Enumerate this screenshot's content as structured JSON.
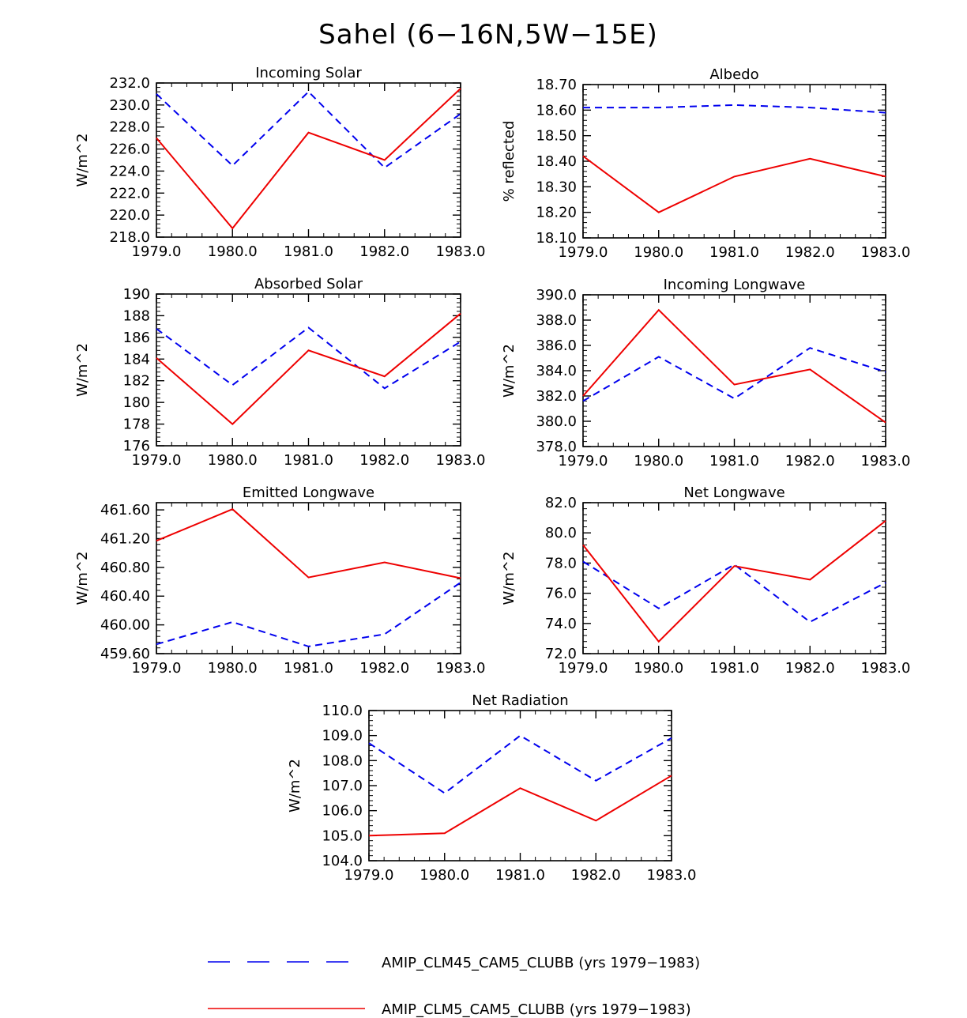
{
  "figure": {
    "title": "Sahel (6−16N,5W−15E)",
    "colors": {
      "series_a": "#0000ee",
      "series_b": "#ee0000",
      "axes": "#000000"
    }
  },
  "legend": [
    {
      "label": "AMIP_CLM45_CAM5_CLUBB (yrs 1979−1983)",
      "color": "#0000ee",
      "style": "dashed"
    },
    {
      "label": "AMIP_CLM5_CAM5_CLUBB (yrs 1979−1983)",
      "color": "#ee0000",
      "style": "solid"
    }
  ],
  "chart_data": [
    {
      "type": "line",
      "title": "Incoming Solar",
      "ylabel": "W/m^2",
      "x": [
        1979,
        1980,
        1981,
        1982,
        1983
      ],
      "xticks": [
        "1979.0",
        "1980.0",
        "1981.0",
        "1982.0",
        "1983.0"
      ],
      "ylim": [
        218,
        232
      ],
      "yticks": [
        "218.0",
        "220.0",
        "222.0",
        "224.0",
        "226.0",
        "228.0",
        "230.0",
        "232.0"
      ],
      "series": [
        {
          "name": "AMIP_CLM45_CAM5_CLUBB",
          "values": [
            231.0,
            224.5,
            231.2,
            224.3,
            229.2
          ]
        },
        {
          "name": "AMIP_CLM5_CAM5_CLUBB",
          "values": [
            227.0,
            218.8,
            227.5,
            225.0,
            231.5
          ]
        }
      ]
    },
    {
      "type": "line",
      "title": "Albedo",
      "ylabel": "% reflected",
      "x": [
        1979,
        1980,
        1981,
        1982,
        1983
      ],
      "xticks": [
        "1979.0",
        "1980.0",
        "1981.0",
        "1982.0",
        "1983.0"
      ],
      "ylim": [
        18.1,
        18.7
      ],
      "yticks": [
        "18.10",
        "18.20",
        "18.30",
        "18.40",
        "18.50",
        "18.60",
        "18.70"
      ],
      "series": [
        {
          "name": "AMIP_CLM45_CAM5_CLUBB",
          "values": [
            18.61,
            18.61,
            18.62,
            18.61,
            18.59
          ]
        },
        {
          "name": "AMIP_CLM5_CAM5_CLUBB",
          "values": [
            18.42,
            18.2,
            18.34,
            18.41,
            18.34
          ]
        }
      ]
    },
    {
      "type": "line",
      "title": "Absorbed Solar",
      "ylabel": "W/m^2",
      "x": [
        1979,
        1980,
        1981,
        1982,
        1983
      ],
      "xticks": [
        "1979.0",
        "1980.0",
        "1981.0",
        "1982.0",
        "1983.0"
      ],
      "ylim": [
        176,
        190
      ],
      "yticks": [
        "176",
        "178",
        "180",
        "182",
        "184",
        "186",
        "188",
        "190"
      ],
      "series": [
        {
          "name": "AMIP_CLM45_CAM5_CLUBB",
          "values": [
            186.8,
            181.6,
            186.9,
            181.3,
            185.6
          ]
        },
        {
          "name": "AMIP_CLM5_CAM5_CLUBB",
          "values": [
            184.1,
            178.0,
            184.8,
            182.4,
            188.2
          ]
        }
      ]
    },
    {
      "type": "line",
      "title": "Incoming Longwave",
      "ylabel": "W/m^2",
      "x": [
        1979,
        1980,
        1981,
        1982,
        1983
      ],
      "xticks": [
        "1979.0",
        "1980.0",
        "1981.0",
        "1982.0",
        "1983.0"
      ],
      "ylim": [
        378,
        390
      ],
      "yticks": [
        "378.0",
        "380.0",
        "382.0",
        "384.0",
        "386.0",
        "388.0",
        "390.0"
      ],
      "series": [
        {
          "name": "AMIP_CLM45_CAM5_CLUBB",
          "values": [
            381.6,
            385.1,
            381.8,
            385.8,
            383.9
          ]
        },
        {
          "name": "AMIP_CLM5_CAM5_CLUBB",
          "values": [
            382.0,
            388.8,
            382.9,
            384.1,
            379.9
          ]
        }
      ]
    },
    {
      "type": "line",
      "title": "Emitted Longwave",
      "ylabel": "W/m^2",
      "x": [
        1979,
        1980,
        1981,
        1982,
        1983
      ],
      "xticks": [
        "1979.0",
        "1980.0",
        "1981.0",
        "1982.0",
        "1983.0"
      ],
      "ylim": [
        459.6,
        461.7
      ],
      "yticks": [
        "459.60",
        "460.00",
        "460.40",
        "460.80",
        "461.20",
        "461.60"
      ],
      "series": [
        {
          "name": "AMIP_CLM45_CAM5_CLUBB",
          "values": [
            459.73,
            460.04,
            459.7,
            459.87,
            460.59
          ]
        },
        {
          "name": "AMIP_CLM5_CAM5_CLUBB",
          "values": [
            461.17,
            461.61,
            460.66,
            460.87,
            460.65
          ]
        }
      ]
    },
    {
      "type": "line",
      "title": "Net Longwave",
      "ylabel": "W/m^2",
      "x": [
        1979,
        1980,
        1981,
        1982,
        1983
      ],
      "xticks": [
        "1979.0",
        "1980.0",
        "1981.0",
        "1982.0",
        "1983.0"
      ],
      "ylim": [
        72,
        82
      ],
      "yticks": [
        "72.0",
        "74.0",
        "76.0",
        "78.0",
        "80.0",
        "82.0"
      ],
      "series": [
        {
          "name": "AMIP_CLM45_CAM5_CLUBB",
          "values": [
            78.1,
            75.0,
            77.9,
            74.1,
            76.7
          ]
        },
        {
          "name": "AMIP_CLM5_CAM5_CLUBB",
          "values": [
            79.2,
            72.8,
            77.8,
            76.9,
            80.8
          ]
        }
      ]
    },
    {
      "type": "line",
      "title": "Net Radiation",
      "ylabel": "W/m^2",
      "x": [
        1979,
        1980,
        1981,
        1982,
        1983
      ],
      "xticks": [
        "1979.0",
        "1980.0",
        "1981.0",
        "1982.0",
        "1983.0"
      ],
      "ylim": [
        104,
        110
      ],
      "yticks": [
        "104.0",
        "105.0",
        "106.0",
        "107.0",
        "108.0",
        "109.0",
        "110.0"
      ],
      "series": [
        {
          "name": "AMIP_CLM45_CAM5_CLUBB",
          "values": [
            108.7,
            106.7,
            109.0,
            107.2,
            108.9
          ]
        },
        {
          "name": "AMIP_CLM5_CAM5_CLUBB",
          "values": [
            105.0,
            105.1,
            106.9,
            105.6,
            107.4
          ]
        }
      ]
    }
  ]
}
